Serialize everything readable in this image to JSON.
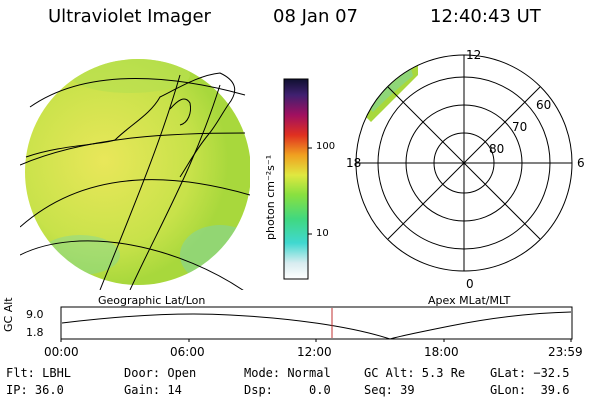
{
  "header": {
    "instrument": "Ultraviolet Imager",
    "date": "08 Jan 07",
    "time": "12:40:43 UT"
  },
  "colorbar": {
    "unit_label": "photon cm⁻²s⁻¹",
    "ticks": [
      "100",
      "10"
    ]
  },
  "geo_panel": {
    "caption": "Geographic Lat/Lon"
  },
  "polar_panel": {
    "caption": "Apex MLat/MLT",
    "mlt_labels": {
      "top": "12",
      "bottom": "0",
      "left": "18",
      "right": "6"
    },
    "mlat_labels": [
      "60",
      "70",
      "80"
    ]
  },
  "timeline": {
    "ylabel": "GC Alt",
    "yticks": [
      "9.0",
      "1.8"
    ],
    "xticks": [
      "00:00",
      "06:00",
      "12:00",
      "18:00",
      "23:59"
    ],
    "current_time": "12:40"
  },
  "status": {
    "flt": "Flt: LBHL",
    "ip": "IP: 36.0",
    "door": "Door: Open",
    "gain": "Gain: 14",
    "mode": "Mode: Normal",
    "dsp": "Dsp:     0.0",
    "gcalt": "GC Alt: 5.3 Re",
    "seq": "Seq: 39",
    "glat": "GLat: −32.5",
    "glon": "GLon:  39.6"
  },
  "colors": {
    "image_green": "#a8d83c",
    "image_yellow": "#e8e860",
    "marker_red": "#c03030"
  }
}
